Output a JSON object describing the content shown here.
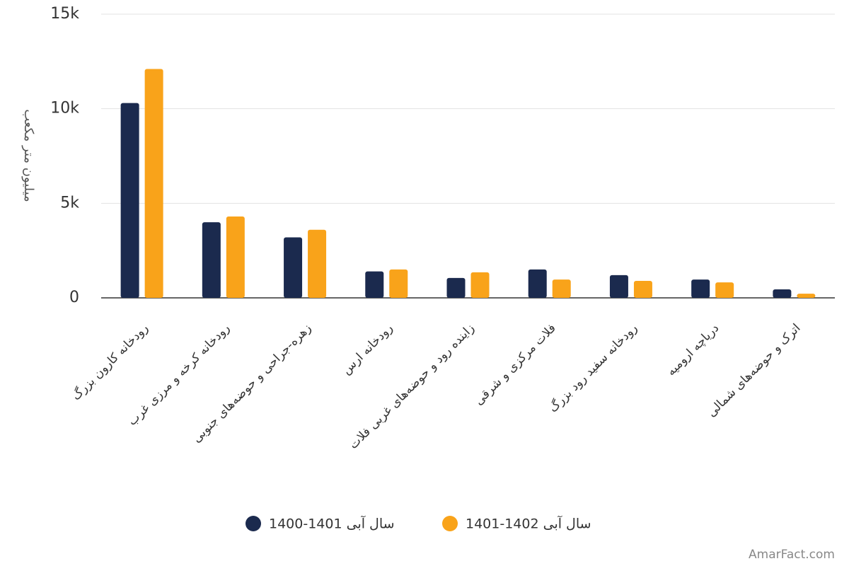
{
  "chart_data": {
    "type": "bar",
    "y_label": "میلیون متر مکعب",
    "categories": [
      "رودخانه کارون بزرگ",
      "رودخانه کرخه و مرزی غرب",
      "زهره-جراحی و حوضه‌های جنوبی",
      "رودخانه ارس",
      "زاینده رود و حوضه‌های غربی فلات",
      "فلات مرکزی و شرقی",
      "رودخانه سفید رود بزرگ",
      "دریاچه ارومیه",
      "اترک و حوضه‌های شمالی"
    ],
    "series": [
      {
        "name": "سال آبی 1401-1400",
        "color": "#1b2a4e",
        "values": [
          10300,
          4000,
          3200,
          1400,
          1050,
          1500,
          1200,
          970,
          450
        ]
      },
      {
        "name": "سال آبی 1402-1401",
        "color": "#f9a31a",
        "values": [
          12100,
          4300,
          3600,
          1500,
          1350,
          970,
          900,
          820,
          220
        ]
      }
    ],
    "ylim": [
      0,
      15000
    ],
    "yticks": [
      0,
      {
        "value": 5000,
        "label": "5k"
      },
      {
        "value": 10000,
        "label": "10k"
      },
      {
        "value": 15000,
        "label": "15k"
      }
    ],
    "grid": true,
    "legend": "bottom",
    "credit": "AmarFact.com"
  }
}
